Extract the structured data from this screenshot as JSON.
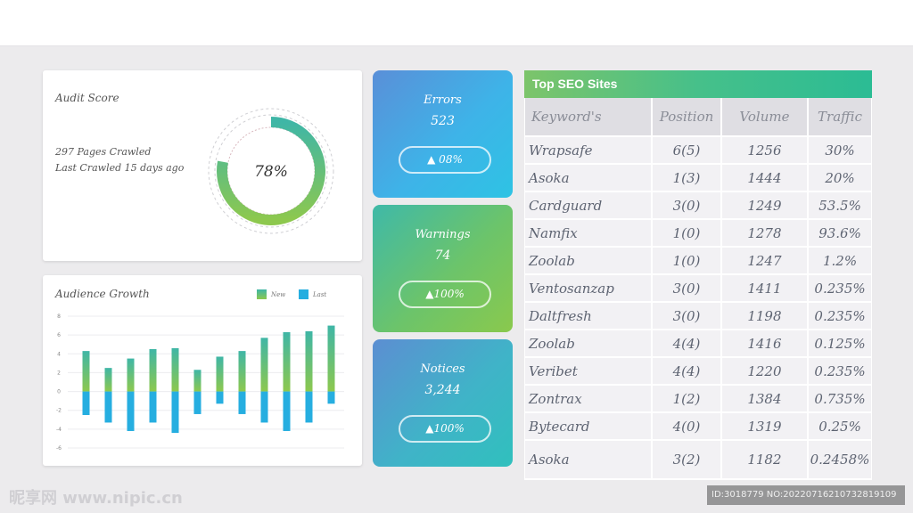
{
  "audit": {
    "title": "Audit Score",
    "pages_crawled": "297 Pages Crawled",
    "last_crawled": "Last Crawled 15 days ago",
    "score_label": "78%",
    "score": 0.78,
    "colors": {
      "start": "#3fb6a6",
      "end": "#8dc84e"
    }
  },
  "audience": {
    "title": "Audience Growth",
    "legend_new": "New",
    "legend_last": "Last",
    "chart_data": {
      "type": "bar",
      "series": [
        {
          "name": "New",
          "values": [
            4.3,
            2.5,
            3.5,
            4.5,
            4.6,
            2.3,
            3.7,
            4.3,
            5.7,
            6.3,
            6.4,
            7.0
          ],
          "color": "#4fba86"
        },
        {
          "name": "Last",
          "values": [
            -2.5,
            -3.3,
            -4.2,
            -3.3,
            -4.4,
            -2.4,
            -1.3,
            -2.4,
            -3.3,
            -4.2,
            -3.3,
            -1.3
          ],
          "color": "#26aee0"
        }
      ],
      "ylim": [
        -6,
        8
      ],
      "yticks": [
        "8",
        "6",
        "4",
        "2",
        "0",
        "-2",
        "-4",
        "-6"
      ],
      "grid": true,
      "legend": "top-right"
    }
  },
  "tiles": {
    "errors": {
      "label": "Errors",
      "value": "523",
      "change": "▲ 08%"
    },
    "warnings": {
      "label": "Warnings",
      "value": "74",
      "change": "▲100%"
    },
    "notices": {
      "label": "Notices",
      "value": "3,244",
      "change": "▲100%"
    }
  },
  "seo": {
    "title": "Top SEO Sites",
    "columns": [
      "Keyword's",
      "Position",
      "Volume",
      "Traffic"
    ],
    "rows": [
      [
        "Wrapsafe",
        "6(5)",
        "1256",
        "30%"
      ],
      [
        "Asoka",
        "1(3)",
        "1444",
        "20%"
      ],
      [
        "Cardguard",
        "3(0)",
        "1249",
        "53.5%"
      ],
      [
        "Namfix",
        "1(0)",
        "1278",
        "93.6%"
      ],
      [
        "Zoolab",
        "1(0)",
        "1247",
        "1.2%"
      ],
      [
        "Ventosanzap",
        "3(0)",
        "1411",
        "0.235%"
      ],
      [
        "Daltfresh",
        "3(0)",
        "1198",
        "0.235%"
      ],
      [
        "Zoolab",
        "4(4)",
        "1416",
        "0.125%"
      ],
      [
        "Veribet",
        "4(4)",
        "1220",
        "0.235%"
      ],
      [
        "Zontrax",
        "1(2)",
        "1384",
        "0.735%"
      ],
      [
        "Bytecard",
        "4(0)",
        "1319",
        "0.25%"
      ],
      [
        "Asoka",
        "3(2)",
        "1182",
        "0.2458%"
      ]
    ]
  },
  "watermark": {
    "left": "昵享网 www.nipic.cn",
    "right": "ID:3018779 NO:20220716210732819109"
  }
}
